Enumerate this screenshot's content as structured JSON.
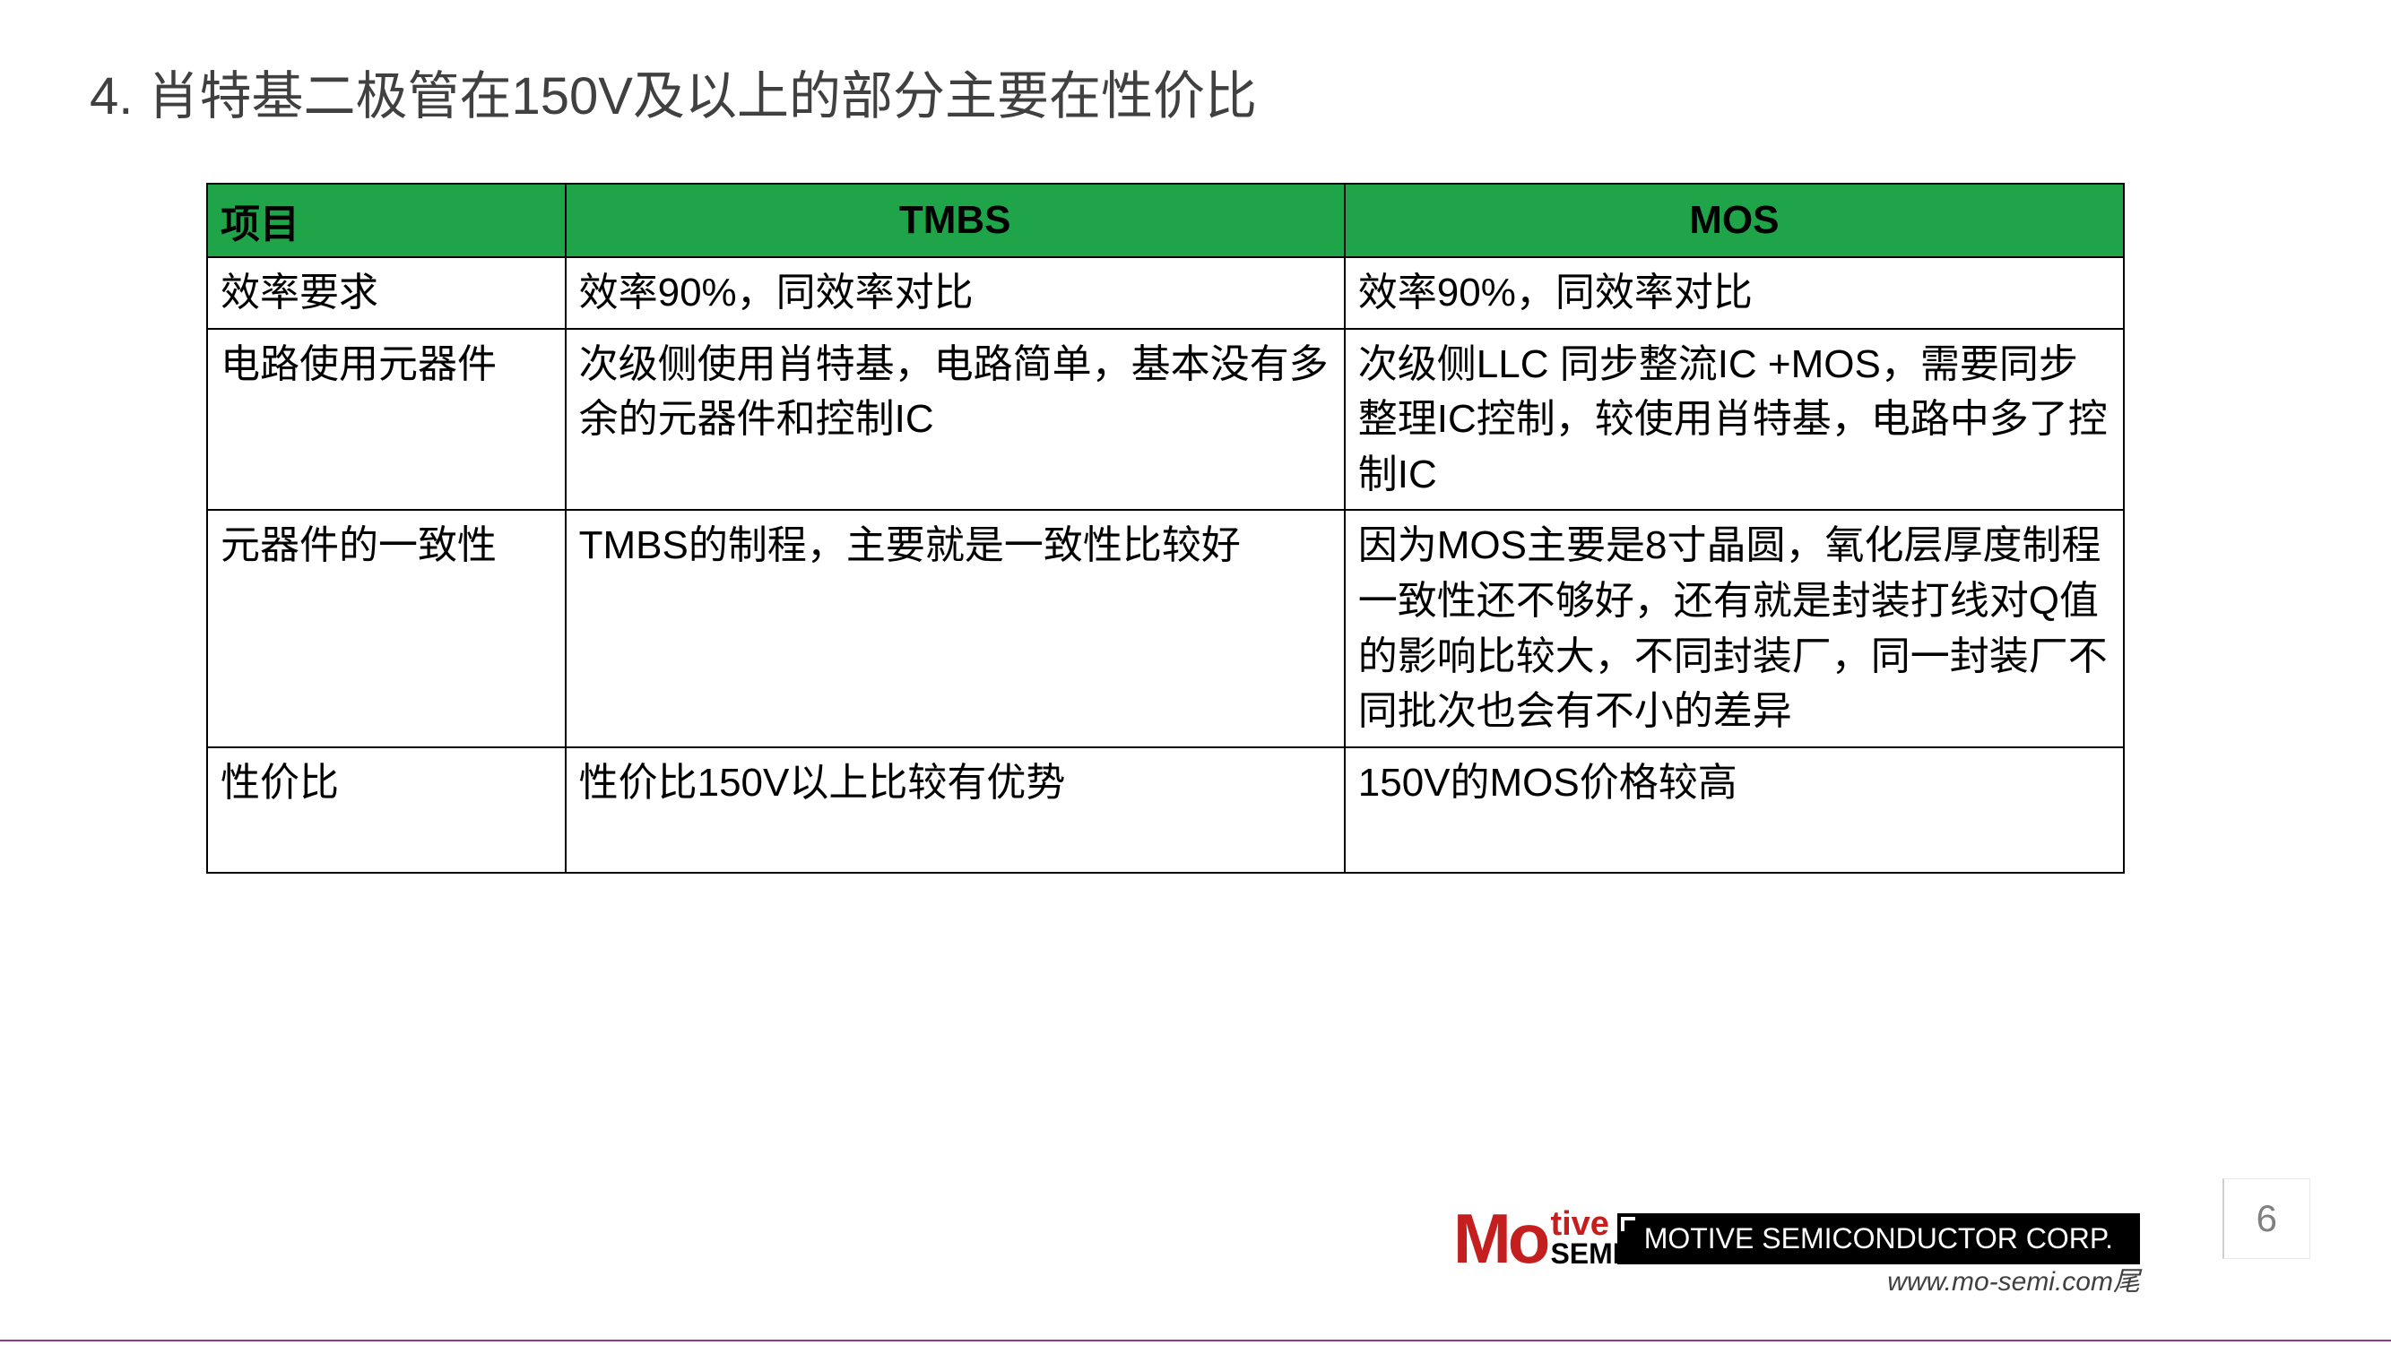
{
  "title": "4. 肖特基二极管在150V及以上的部分主要在性价比",
  "table": {
    "header_bg_color": "#1fa449",
    "border_color": "#000000",
    "columns": [
      "项目",
      "TMBS",
      "MOS"
    ],
    "col_widths": [
      "400px",
      "870px",
      "870px"
    ],
    "rows": [
      {
        "item": "效率要求",
        "tmbs": "效率90%，同效率对比",
        "mos": "效率90%，同效率对比"
      },
      {
        "item": "电路使用元器件",
        "tmbs": "次级侧使用肖特基，电路简单，基本没有多余的元器件和控制IC",
        "mos": "次级侧LLC 同步整流IC +MOS，需要同步整理IC控制，较使用肖特基，电路中多了控制IC"
      },
      {
        "item": "元器件的一致性",
        "tmbs": "TMBS的制程，主要就是一致性比较好",
        "mos": "因为MOS主要是8寸晶圆，氧化层厚度制程一致性还不够好，还有就是封装打线对Q值的影响比较大，不同封装厂，同一封装厂不同批次也会有不小的差异"
      },
      {
        "item": "性价比",
        "tmbs": "性价比150V以上比较有优势",
        "mos": "150V的MOS价格较高"
      }
    ]
  },
  "footer": {
    "logo_mo": "Mo",
    "logo_tive": "tive",
    "logo_semi": "SEMI",
    "logo_mo_color": "#c41e1e",
    "logo_tive_color": "#c41e1e",
    "company_name": "MOTIVE SEMICONDUCTOR CORP.",
    "company_bar_bg": "#000000",
    "website": "www.mo-semi.com尾",
    "page_number": "6"
  },
  "background_color": "#ffffff",
  "title_color": "#404040",
  "title_fontsize": 58,
  "cell_fontsize": 44
}
